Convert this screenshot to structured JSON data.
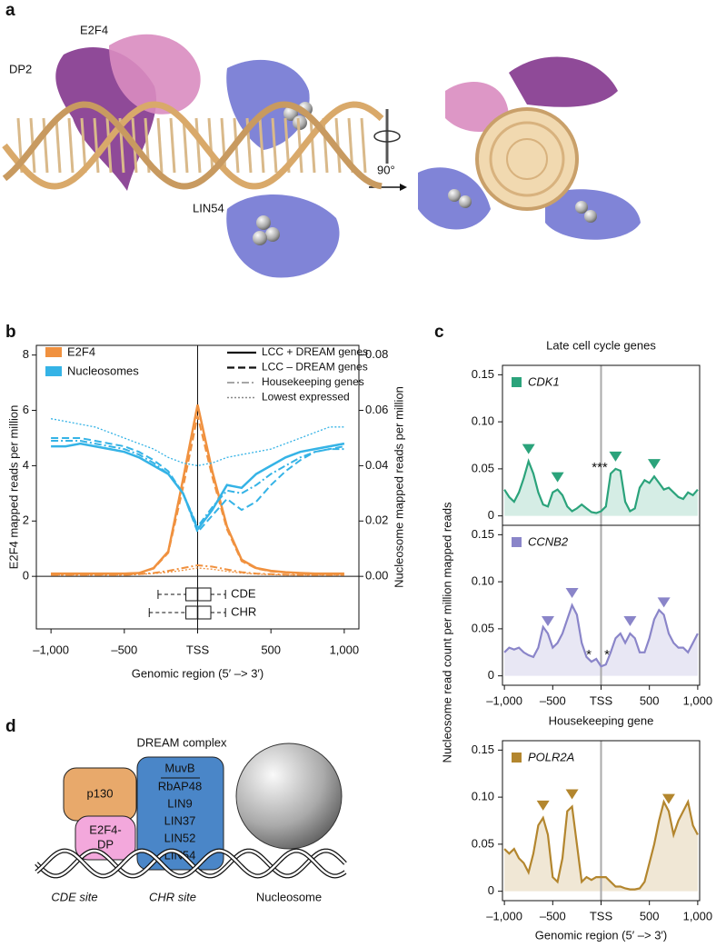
{
  "panel_labels": [
    "a",
    "b",
    "c",
    "d"
  ],
  "structure": {
    "labels": [
      "E2F4",
      "DP2",
      "LIN54"
    ],
    "rotation": "90°"
  },
  "diagram": {
    "title": "DREAM complex",
    "p130": "p130",
    "e2f4_dp": [
      "E2F4-",
      "DP"
    ],
    "muvb": {
      "title": "MuvB",
      "members": [
        "RbAP48",
        "LIN9",
        "LIN37",
        "LIN52",
        "LIN54"
      ]
    },
    "nucleosome": "Nucleosome",
    "sites": [
      "CDE site",
      "CHR site"
    ]
  },
  "chart_data": [
    {
      "type": "line",
      "xlabel": "Genomic region (5′ –> 3′)",
      "ylabel": "E2F4 mapped reads per million",
      "y2label": "Nucleosome mapped reads per million",
      "x": [
        -1000,
        -900,
        -800,
        -700,
        -600,
        -500,
        -400,
        -300,
        -200,
        -100,
        0,
        100,
        200,
        300,
        400,
        500,
        600,
        700,
        800,
        900,
        1000
      ],
      "xlim": [
        -1100,
        1100
      ],
      "ylim": [
        -1.9,
        8.35
      ],
      "y2lim": [
        -0.019,
        0.0835
      ],
      "xticks": [
        {
          "value": -1000,
          "label": "–1,000"
        },
        {
          "value": -500,
          "label": "–500"
        },
        {
          "value": 0,
          "label": "TSS"
        },
        500,
        {
          "value": 1000,
          "label": "1,000"
        }
      ],
      "yticks": [
        0,
        2,
        4,
        6,
        8
      ],
      "y2ticks": [
        {
          "value": 0,
          "label": "0.00"
        },
        0.02,
        0.04,
        0.06,
        0.08
      ],
      "legend": {
        "colors": [
          {
            "name": "E2F4",
            "color": "#f0913f"
          },
          {
            "name": "Nucleosomes",
            "color": "#35b3e6"
          }
        ],
        "styles": [
          {
            "name": "LCC + DREAM genes",
            "dash": "solid"
          },
          {
            "name": "LCC –  DREAM genes",
            "dash": "dashed"
          },
          {
            "name": "Housekeeping genes",
            "dash": "dashdot"
          },
          {
            "name": "Lowest expressed",
            "dash": "dotted"
          }
        ]
      },
      "series": [
        {
          "color": "#f0913f",
          "dash": "solid",
          "values": [
            0.1,
            0.1,
            0.1,
            0.1,
            0.1,
            0.1,
            0.12,
            0.3,
            0.9,
            3.5,
            6.2,
            3.8,
            1.8,
            0.6,
            0.3,
            0.2,
            0.15,
            0.12,
            0.1,
            0.1,
            0.1
          ]
        },
        {
          "color": "#f0913f",
          "dash": "dashed",
          "values": [
            0.1,
            0.1,
            0.1,
            0.1,
            0.1,
            0.1,
            0.12,
            0.28,
            0.85,
            3.2,
            5.8,
            3.6,
            1.7,
            0.55,
            0.28,
            0.18,
            0.14,
            0.12,
            0.1,
            0.1,
            0.1
          ]
        },
        {
          "color": "#f0913f",
          "dash": "dashdot",
          "values": [
            0.05,
            0.05,
            0.05,
            0.05,
            0.05,
            0.05,
            0.08,
            0.12,
            0.2,
            0.3,
            0.4,
            0.35,
            0.25,
            0.15,
            0.1,
            0.08,
            0.06,
            0.05,
            0.05,
            0.05,
            0.05
          ]
        },
        {
          "color": "#f0913f",
          "dash": "dotted",
          "values": [
            0.05,
            0.05,
            0.05,
            0.05,
            0.05,
            0.05,
            0.07,
            0.1,
            0.15,
            0.22,
            0.3,
            0.26,
            0.18,
            0.12,
            0.08,
            0.06,
            0.05,
            0.05,
            0.05,
            0.05,
            0.05
          ]
        },
        {
          "color": "#35b3e6",
          "dash": "solid",
          "axis": "y2",
          "values": [
            0.047,
            0.047,
            0.048,
            0.047,
            0.046,
            0.045,
            0.043,
            0.04,
            0.037,
            0.03,
            0.017,
            0.024,
            0.033,
            0.032,
            0.037,
            0.04,
            0.043,
            0.045,
            0.046,
            0.047,
            0.048
          ]
        },
        {
          "color": "#35b3e6",
          "dash": "dashed",
          "axis": "y2",
          "values": [
            0.05,
            0.05,
            0.05,
            0.049,
            0.048,
            0.047,
            0.045,
            0.042,
            0.038,
            0.03,
            0.016,
            0.022,
            0.028,
            0.024,
            0.027,
            0.033,
            0.038,
            0.042,
            0.045,
            0.046,
            0.047
          ]
        },
        {
          "color": "#35b3e6",
          "dash": "dashdot",
          "axis": "y2",
          "values": [
            0.049,
            0.049,
            0.049,
            0.048,
            0.047,
            0.046,
            0.044,
            0.041,
            0.037,
            0.03,
            0.018,
            0.025,
            0.031,
            0.03,
            0.033,
            0.037,
            0.04,
            0.043,
            0.045,
            0.046,
            0.046
          ]
        },
        {
          "color": "#35b3e6",
          "dash": "dotted",
          "axis": "y2",
          "values": [
            0.057,
            0.056,
            0.055,
            0.054,
            0.052,
            0.05,
            0.048,
            0.046,
            0.043,
            0.041,
            0.04,
            0.041,
            0.043,
            0.044,
            0.045,
            0.046,
            0.048,
            0.05,
            0.052,
            0.054,
            0.054
          ]
        }
      ],
      "boxes": [
        {
          "label": "CDE",
          "min": -270,
          "q1": -80,
          "median": 0,
          "q3": 90,
          "max": 190
        },
        {
          "label": "CHR",
          "min": -330,
          "q1": -80,
          "median": 0,
          "q3": 90,
          "max": 190
        }
      ]
    },
    {
      "type": "area",
      "title": "Late cell cycle genes",
      "ylabel": "Nucleosome read count per million mapped reads",
      "x": [
        -1000,
        -950,
        -900,
        -850,
        -800,
        -750,
        -700,
        -650,
        -600,
        -550,
        -500,
        -450,
        -400,
        -350,
        -300,
        -250,
        -200,
        -150,
        -100,
        -50,
        0,
        50,
        100,
        150,
        200,
        250,
        300,
        350,
        400,
        450,
        500,
        550,
        600,
        650,
        700,
        750,
        800,
        850,
        900,
        950,
        1000
      ],
      "xlim": [
        -1020,
        1020
      ],
      "ylim": [
        -0.01,
        0.16
      ],
      "yticks": [
        0,
        0.05,
        {
          "value": 0.1,
          "label": "0.10"
        },
        0.15
      ],
      "series": [
        {
          "name": "CDK1",
          "color": "#2ba37b",
          "values": [
            0.028,
            0.02,
            0.015,
            0.025,
            0.04,
            0.058,
            0.045,
            0.025,
            0.012,
            0.01,
            0.025,
            0.028,
            0.022,
            0.01,
            0.005,
            0.008,
            0.012,
            0.008,
            0.004,
            0.003,
            0.005,
            0.01,
            0.045,
            0.05,
            0.048,
            0.015,
            0.005,
            0.008,
            0.03,
            0.038,
            0.035,
            0.042,
            0.035,
            0.028,
            0.03,
            0.025,
            0.02,
            0.018,
            0.025,
            0.022,
            0.028
          ]
        }
      ],
      "markers": [
        -750,
        -450,
        150,
        550
      ],
      "annotations": [
        "***"
      ]
    },
    {
      "type": "area",
      "x": [
        -1000,
        -950,
        -900,
        -850,
        -800,
        -750,
        -700,
        -650,
        -600,
        -550,
        -500,
        -450,
        -400,
        -350,
        -300,
        -250,
        -200,
        -150,
        -100,
        -50,
        0,
        50,
        100,
        150,
        200,
        250,
        300,
        350,
        400,
        450,
        500,
        550,
        600,
        650,
        700,
        750,
        800,
        850,
        900,
        950,
        1000
      ],
      "xlim": [
        -1020,
        1020
      ],
      "ylim": [
        -0.01,
        0.16
      ],
      "yticks": [
        0,
        0.05,
        {
          "value": 0.1,
          "label": "0.10"
        },
        0.15
      ],
      "xticks": [
        {
          "value": -1000,
          "label": "–1,000"
        },
        {
          "value": -500,
          "label": "–500"
        },
        {
          "value": 0,
          "label": "TSS"
        },
        500,
        {
          "value": 1000,
          "label": "1,000"
        }
      ],
      "series": [
        {
          "name": "CCNB2",
          "color": "#8a85c9",
          "values": [
            0.025,
            0.03,
            0.028,
            0.03,
            0.025,
            0.022,
            0.02,
            0.03,
            0.052,
            0.045,
            0.03,
            0.035,
            0.045,
            0.06,
            0.075,
            0.065,
            0.035,
            0.02,
            0.015,
            0.018,
            0.01,
            0.012,
            0.025,
            0.04,
            0.045,
            0.035,
            0.045,
            0.04,
            0.025,
            0.025,
            0.04,
            0.06,
            0.07,
            0.065,
            0.045,
            0.035,
            0.03,
            0.03,
            0.025,
            0.035,
            0.045
          ]
        }
      ],
      "markers": [
        -550,
        -300,
        300,
        650
      ],
      "annotations": [
        "*",
        "*"
      ]
    },
    {
      "type": "area",
      "title": "Housekeeping gene",
      "xlabel": "Genomic region (5′ –> 3′)",
      "x": [
        -1000,
        -950,
        -900,
        -850,
        -800,
        -750,
        -700,
        -650,
        -600,
        -550,
        -500,
        -450,
        -400,
        -350,
        -300,
        -250,
        -200,
        -150,
        -100,
        -50,
        0,
        50,
        100,
        150,
        200,
        250,
        300,
        350,
        400,
        450,
        500,
        550,
        600,
        650,
        700,
        750,
        800,
        850,
        900,
        950,
        1000
      ],
      "xlim": [
        -1020,
        1020
      ],
      "ylim": [
        -0.01,
        0.16
      ],
      "yticks": [
        0,
        0.05,
        {
          "value": 0.1,
          "label": "0.10"
        },
        0.15
      ],
      "xticks": [
        {
          "value": -1000,
          "label": "–1,000"
        },
        {
          "value": -500,
          "label": "–500"
        },
        {
          "value": 0,
          "label": "TSS"
        },
        500,
        {
          "value": 1000,
          "label": "1,000"
        }
      ],
      "series": [
        {
          "name": "POLR2A",
          "color": "#b3862e",
          "values": [
            0.045,
            0.04,
            0.045,
            0.035,
            0.03,
            0.02,
            0.04,
            0.07,
            0.078,
            0.06,
            0.015,
            0.01,
            0.035,
            0.085,
            0.09,
            0.05,
            0.01,
            0.015,
            0.012,
            0.015,
            0.015,
            0.015,
            0.01,
            0.005,
            0.005,
            0.003,
            0.002,
            0.002,
            0.003,
            0.01,
            0.03,
            0.05,
            0.075,
            0.095,
            0.085,
            0.06,
            0.075,
            0.085,
            0.095,
            0.07,
            0.06
          ]
        }
      ],
      "markers": [
        -600,
        -300,
        700
      ]
    }
  ]
}
